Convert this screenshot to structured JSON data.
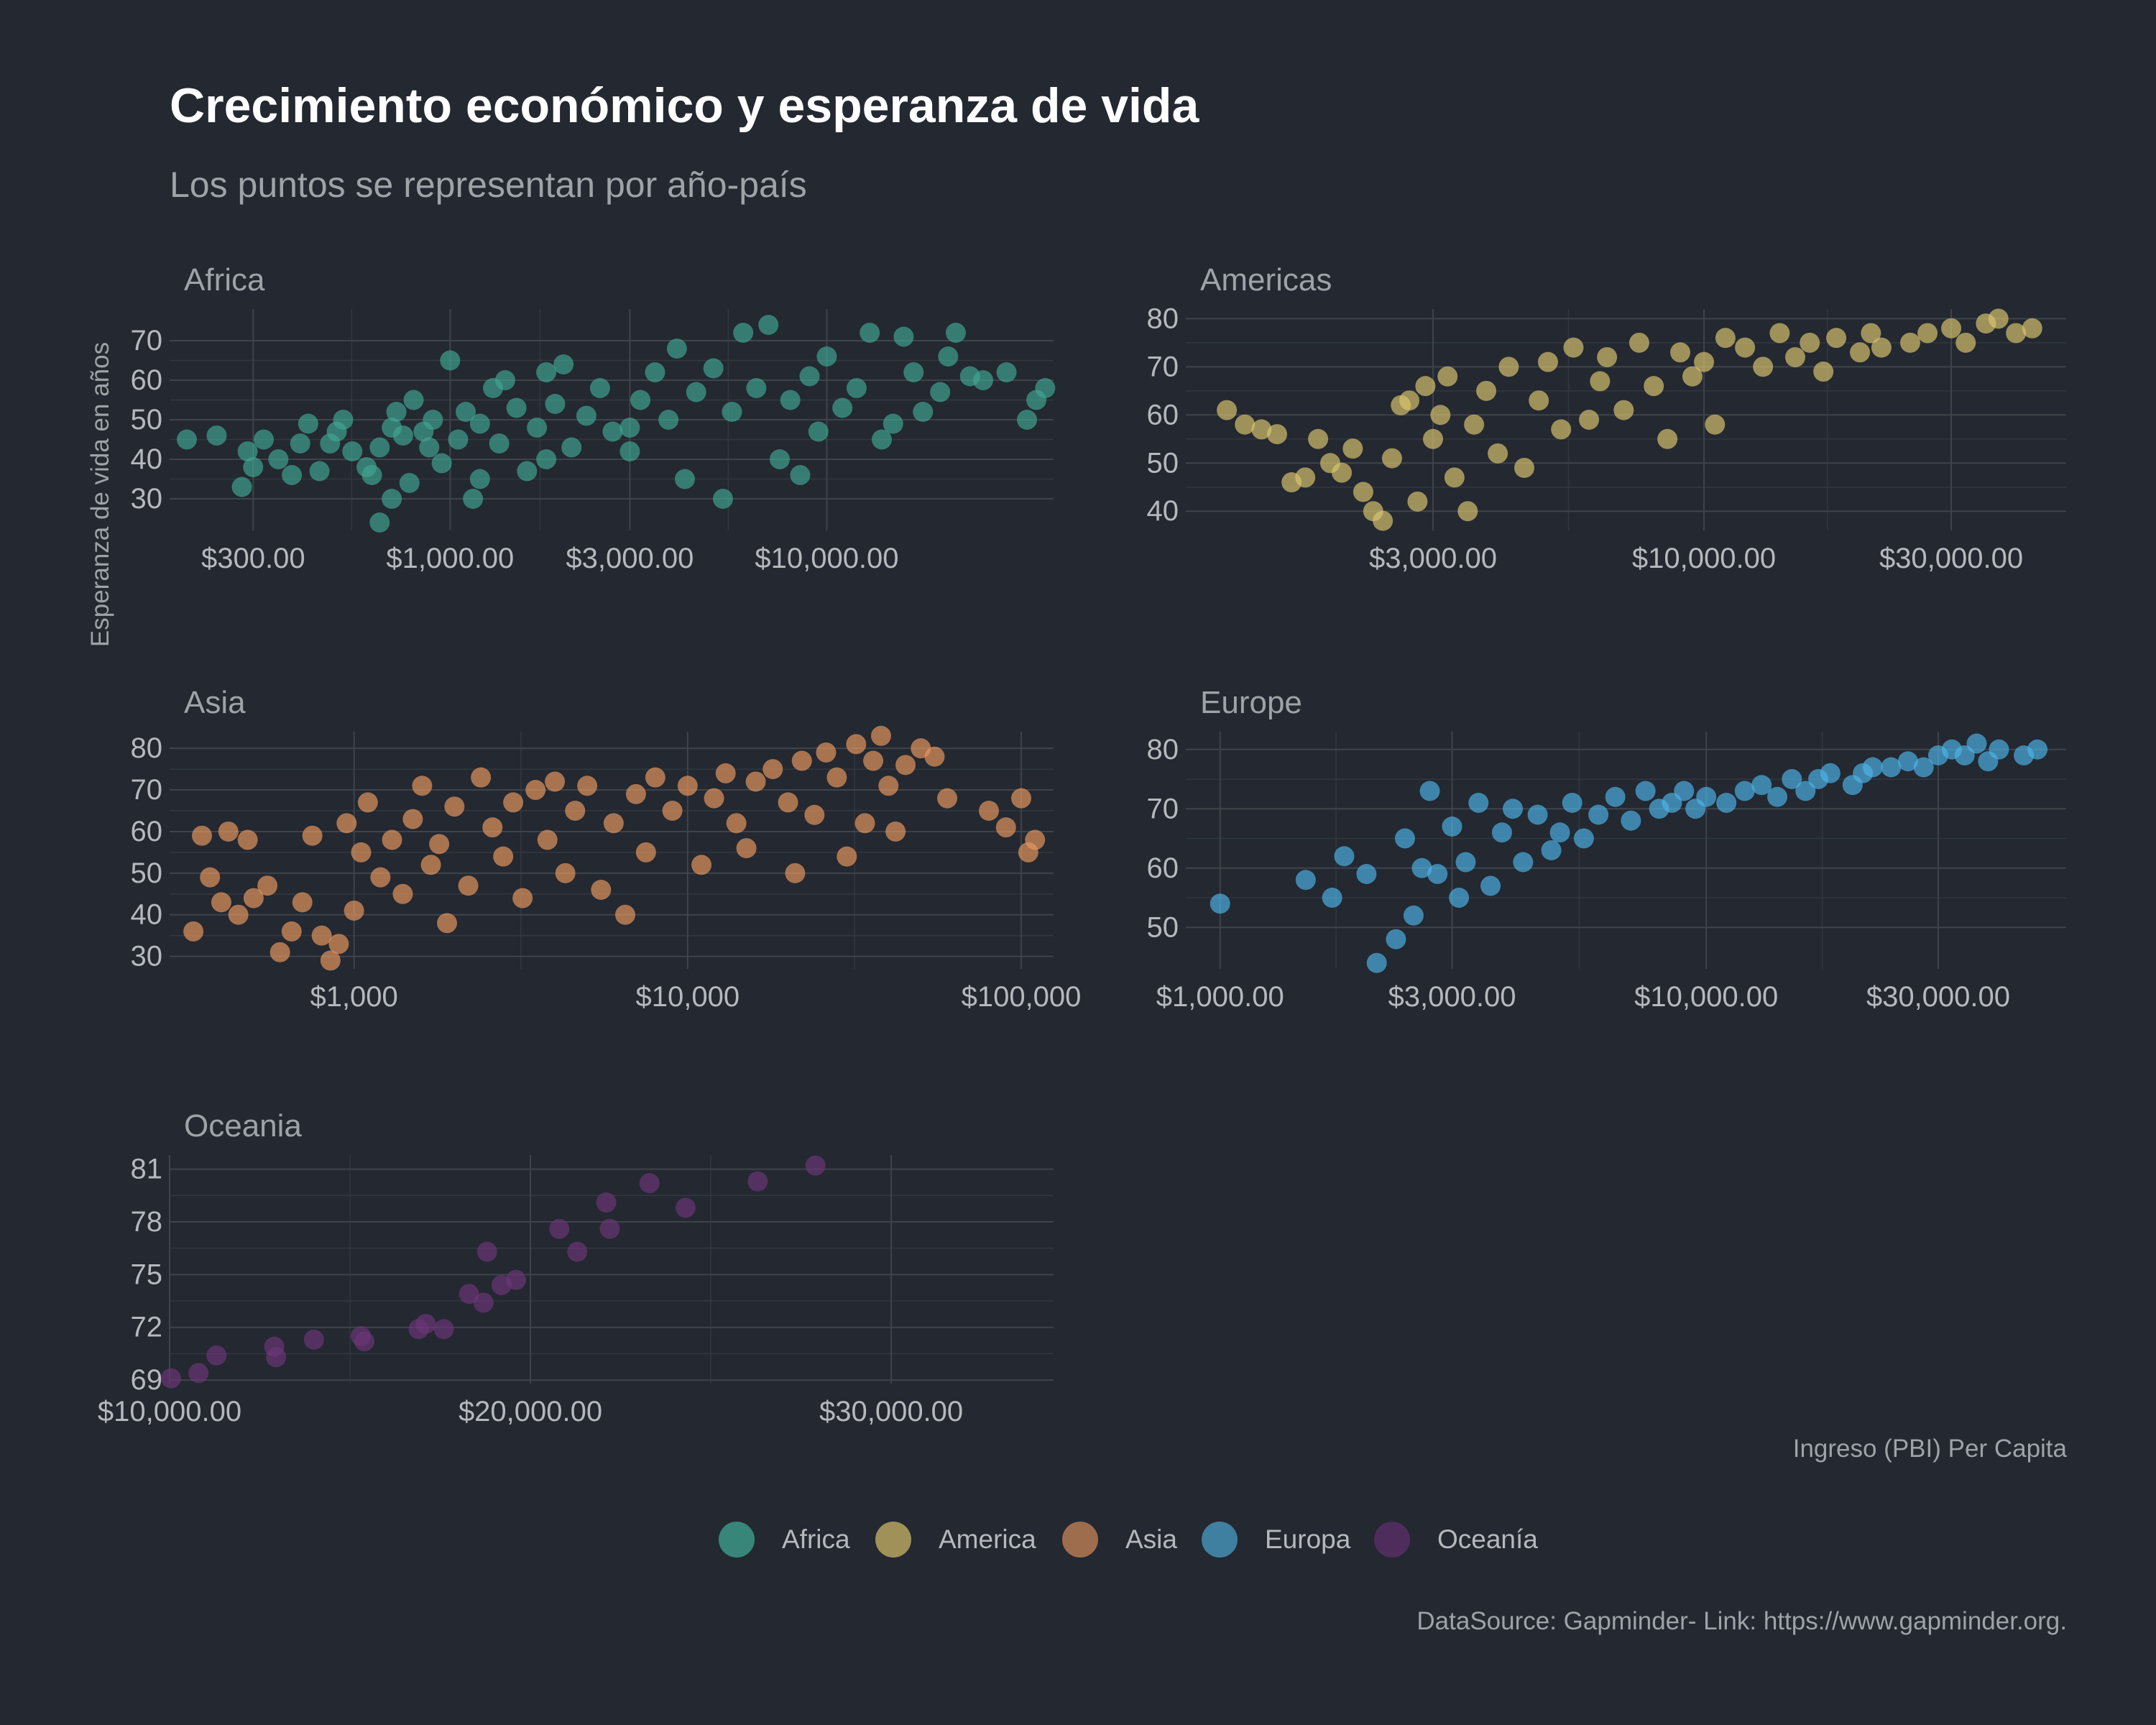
{
  "title": "Crecimiento económico y esperanza de vida",
  "subtitle": "Los puntos se representan por año-país",
  "y_axis_label": "Esperanza de vida en años",
  "x_axis_label": "Ingreso (PBI) Per Capita",
  "source": "DataSource: Gapminder- Link: https://www.gapminder.org.",
  "legend": [
    {
      "label": "Africa",
      "color": "#3fa592"
    },
    {
      "label": "America",
      "color": "#c9b466"
    },
    {
      "label": "Asia",
      "color": "#c88458"
    },
    {
      "label": "Europa",
      "color": "#4a9cc4"
    },
    {
      "label": "Oceanía",
      "color": "#5e2f6b"
    }
  ],
  "chart_data": [
    {
      "type": "scatter",
      "panel": "Africa",
      "color": "#3fa592",
      "x_scale": "log",
      "xlim": [
        180,
        40000
      ],
      "ylim": [
        22,
        78
      ],
      "x_ticks": [
        300,
        1000,
        3000,
        10000
      ],
      "x_tick_labels": [
        "$300.00",
        "$1,000.00",
        "$3,000.00",
        "$10,000.00"
      ],
      "y_ticks": [
        30,
        40,
        50,
        60,
        70
      ],
      "y_tick_labels": [
        "30",
        "40",
        "50",
        "60",
        "70"
      ],
      "points": [
        [
          200,
          45
        ],
        [
          240,
          46
        ],
        [
          280,
          33
        ],
        [
          290,
          42
        ],
        [
          300,
          38
        ],
        [
          320,
          45
        ],
        [
          350,
          40
        ],
        [
          380,
          36
        ],
        [
          400,
          44
        ],
        [
          420,
          49
        ],
        [
          450,
          37
        ],
        [
          480,
          44
        ],
        [
          500,
          47
        ],
        [
          520,
          50
        ],
        [
          550,
          42
        ],
        [
          600,
          38
        ],
        [
          620,
          36
        ],
        [
          650,
          43
        ],
        [
          700,
          48
        ],
        [
          720,
          52
        ],
        [
          750,
          46
        ],
        [
          780,
          34
        ],
        [
          800,
          55
        ],
        [
          850,
          47
        ],
        [
          880,
          43
        ],
        [
          900,
          50
        ],
        [
          950,
          39
        ],
        [
          1000,
          65
        ],
        [
          1050,
          45
        ],
        [
          1100,
          52
        ],
        [
          1150,
          30
        ],
        [
          1200,
          49
        ],
        [
          1300,
          58
        ],
        [
          1350,
          44
        ],
        [
          1400,
          60
        ],
        [
          1500,
          53
        ],
        [
          1600,
          37
        ],
        [
          1700,
          48
        ],
        [
          1800,
          62
        ],
        [
          1900,
          54
        ],
        [
          2000,
          64
        ],
        [
          2100,
          43
        ],
        [
          2300,
          51
        ],
        [
          2500,
          58
        ],
        [
          2700,
          47
        ],
        [
          3000,
          42
        ],
        [
          3200,
          55
        ],
        [
          3500,
          62
        ],
        [
          3800,
          50
        ],
        [
          4000,
          68
        ],
        [
          4200,
          35
        ],
        [
          4500,
          57
        ],
        [
          5000,
          63
        ],
        [
          5300,
          30
        ],
        [
          5600,
          52
        ],
        [
          6000,
          72
        ],
        [
          6500,
          58
        ],
        [
          7000,
          74
        ],
        [
          7500,
          40
        ],
        [
          8000,
          55
        ],
        [
          8500,
          36
        ],
        [
          9000,
          61
        ],
        [
          9500,
          47
        ],
        [
          10000,
          66
        ],
        [
          11000,
          53
        ],
        [
          12000,
          58
        ],
        [
          13000,
          72
        ],
        [
          14000,
          45
        ],
        [
          15000,
          49
        ],
        [
          16000,
          71
        ],
        [
          17000,
          62
        ],
        [
          18000,
          52
        ],
        [
          20000,
          57
        ],
        [
          21000,
          66
        ],
        [
          22000,
          72
        ],
        [
          24000,
          61
        ],
        [
          26000,
          60
        ],
        [
          30000,
          62
        ],
        [
          34000,
          50
        ],
        [
          36000,
          55
        ],
        [
          38000,
          58
        ],
        [
          650,
          24
        ],
        [
          700,
          30
        ],
        [
          1200,
          35
        ],
        [
          1800,
          40
        ],
        [
          3000,
          48
        ]
      ]
    },
    {
      "type": "scatter",
      "panel": "Americas",
      "color": "#d9c46f",
      "x_scale": "log",
      "xlim": [
        1000,
        50000
      ],
      "ylim": [
        36,
        82
      ],
      "x_ticks": [
        3000,
        10000,
        30000
      ],
      "x_tick_labels": [
        "$3,000.00",
        "$10,000.00",
        "$30,000.00"
      ],
      "y_ticks": [
        40,
        50,
        60,
        70,
        80
      ],
      "y_tick_labels": [
        "40",
        "50",
        "60",
        "70",
        "80"
      ],
      "points": [
        [
          1200,
          61
        ],
        [
          1300,
          58
        ],
        [
          1400,
          57
        ],
        [
          1500,
          56
        ],
        [
          1600,
          46
        ],
        [
          1700,
          47
        ],
        [
          1800,
          55
        ],
        [
          1900,
          50
        ],
        [
          2000,
          48
        ],
        [
          2100,
          53
        ],
        [
          2200,
          44
        ],
        [
          2300,
          40
        ],
        [
          2400,
          38
        ],
        [
          2500,
          51
        ],
        [
          2600,
          62
        ],
        [
          2700,
          63
        ],
        [
          2800,
          42
        ],
        [
          2900,
          66
        ],
        [
          3000,
          55
        ],
        [
          3100,
          60
        ],
        [
          3200,
          68
        ],
        [
          3300,
          47
        ],
        [
          3500,
          40
        ],
        [
          3600,
          58
        ],
        [
          3800,
          65
        ],
        [
          4000,
          52
        ],
        [
          4200,
          70
        ],
        [
          4500,
          49
        ],
        [
          4800,
          63
        ],
        [
          5000,
          71
        ],
        [
          5300,
          57
        ],
        [
          5600,
          74
        ],
        [
          6000,
          59
        ],
        [
          6300,
          67
        ],
        [
          6500,
          72
        ],
        [
          7000,
          61
        ],
        [
          7500,
          75
        ],
        [
          8000,
          66
        ],
        [
          8500,
          55
        ],
        [
          9000,
          73
        ],
        [
          9500,
          68
        ],
        [
          10000,
          71
        ],
        [
          10500,
          58
        ],
        [
          11000,
          76
        ],
        [
          12000,
          74
        ],
        [
          13000,
          70
        ],
        [
          14000,
          77
        ],
        [
          15000,
          72
        ],
        [
          16000,
          75
        ],
        [
          17000,
          69
        ],
        [
          18000,
          76
        ],
        [
          20000,
          73
        ],
        [
          21000,
          77
        ],
        [
          22000,
          74
        ],
        [
          25000,
          75
        ],
        [
          27000,
          77
        ],
        [
          30000,
          78
        ],
        [
          32000,
          75
        ],
        [
          35000,
          79
        ],
        [
          37000,
          80
        ],
        [
          40000,
          77
        ],
        [
          43000,
          78
        ]
      ]
    },
    {
      "type": "scatter",
      "panel": "Asia",
      "color": "#e8985f",
      "x_scale": "log",
      "xlim": [
        280,
        125000
      ],
      "ylim": [
        27,
        84
      ],
      "x_ticks": [
        1000,
        10000,
        100000
      ],
      "x_tick_labels": [
        "$1,000",
        "$10,000",
        "$100,000"
      ],
      "y_ticks": [
        30,
        40,
        50,
        60,
        70,
        80
      ],
      "y_tick_labels": [
        "30",
        "40",
        "50",
        "60",
        "70",
        "80"
      ],
      "points": [
        [
          330,
          36
        ],
        [
          350,
          59
        ],
        [
          370,
          49
        ],
        [
          400,
          43
        ],
        [
          420,
          60
        ],
        [
          450,
          40
        ],
        [
          480,
          58
        ],
        [
          500,
          44
        ],
        [
          550,
          47
        ],
        [
          600,
          31
        ],
        [
          650,
          36
        ],
        [
          700,
          43
        ],
        [
          750,
          59
        ],
        [
          800,
          35
        ],
        [
          850,
          29
        ],
        [
          900,
          33
        ],
        [
          950,
          62
        ],
        [
          1000,
          41
        ],
        [
          1050,
          55
        ],
        [
          1100,
          67
        ],
        [
          1200,
          49
        ],
        [
          1300,
          58
        ],
        [
          1400,
          45
        ],
        [
          1500,
          63
        ],
        [
          1600,
          71
        ],
        [
          1700,
          52
        ],
        [
          1800,
          57
        ],
        [
          1900,
          38
        ],
        [
          2000,
          66
        ],
        [
          2200,
          47
        ],
        [
          2400,
          73
        ],
        [
          2600,
          61
        ],
        [
          2800,
          54
        ],
        [
          3000,
          67
        ],
        [
          3200,
          44
        ],
        [
          3500,
          70
        ],
        [
          3800,
          58
        ],
        [
          4000,
          72
        ],
        [
          4300,
          50
        ],
        [
          4600,
          65
        ],
        [
          5000,
          71
        ],
        [
          5500,
          46
        ],
        [
          6000,
          62
        ],
        [
          6500,
          40
        ],
        [
          7000,
          69
        ],
        [
          7500,
          55
        ],
        [
          8000,
          73
        ],
        [
          9000,
          65
        ],
        [
          10000,
          71
        ],
        [
          11000,
          52
        ],
        [
          12000,
          68
        ],
        [
          13000,
          74
        ],
        [
          14000,
          62
        ],
        [
          15000,
          56
        ],
        [
          16000,
          72
        ],
        [
          18000,
          75
        ],
        [
          20000,
          67
        ],
        [
          21000,
          50
        ],
        [
          22000,
          77
        ],
        [
          24000,
          64
        ],
        [
          26000,
          79
        ],
        [
          28000,
          73
        ],
        [
          30000,
          54
        ],
        [
          32000,
          81
        ],
        [
          34000,
          62
        ],
        [
          36000,
          77
        ],
        [
          38000,
          83
        ],
        [
          40000,
          71
        ],
        [
          42000,
          60
        ],
        [
          45000,
          76
        ],
        [
          50000,
          80
        ],
        [
          55000,
          78
        ],
        [
          60000,
          68
        ],
        [
          80000,
          65
        ],
        [
          90000,
          61
        ],
        [
          100000,
          68
        ],
        [
          105000,
          55
        ],
        [
          110000,
          58
        ]
      ]
    },
    {
      "type": "scatter",
      "panel": "Europe",
      "color": "#4cb3e6",
      "x_scale": "log",
      "xlim": [
        850,
        55000
      ],
      "ylim": [
        43,
        83
      ],
      "x_ticks": [
        1000,
        3000,
        10000,
        30000
      ],
      "x_tick_labels": [
        "$1,000.00",
        "$3,000.00",
        "$10,000.00",
        "$30,000.00"
      ],
      "y_ticks": [
        50,
        60,
        70,
        80
      ],
      "y_tick_labels": [
        "50",
        "60",
        "70",
        "80"
      ],
      "points": [
        [
          1000,
          54
        ],
        [
          1500,
          58
        ],
        [
          1700,
          55
        ],
        [
          1800,
          62
        ],
        [
          2000,
          59
        ],
        [
          2100,
          44
        ],
        [
          2300,
          48
        ],
        [
          2400,
          65
        ],
        [
          2500,
          52
        ],
        [
          2600,
          60
        ],
        [
          2700,
          73
        ],
        [
          2800,
          59
        ],
        [
          3000,
          67
        ],
        [
          3100,
          55
        ],
        [
          3200,
          61
        ],
        [
          3400,
          71
        ],
        [
          3600,
          57
        ],
        [
          3800,
          66
        ],
        [
          4000,
          70
        ],
        [
          4200,
          61
        ],
        [
          4500,
          69
        ],
        [
          4800,
          63
        ],
        [
          5000,
          66
        ],
        [
          5300,
          71
        ],
        [
          5600,
          65
        ],
        [
          6000,
          69
        ],
        [
          6500,
          72
        ],
        [
          7000,
          68
        ],
        [
          7500,
          73
        ],
        [
          8000,
          70
        ],
        [
          8500,
          71
        ],
        [
          9000,
          73
        ],
        [
          9500,
          70
        ],
        [
          10000,
          72
        ],
        [
          11000,
          71
        ],
        [
          12000,
          73
        ],
        [
          13000,
          74
        ],
        [
          14000,
          72
        ],
        [
          15000,
          75
        ],
        [
          16000,
          73
        ],
        [
          17000,
          75
        ],
        [
          18000,
          76
        ],
        [
          20000,
          74
        ],
        [
          21000,
          76
        ],
        [
          22000,
          77
        ],
        [
          24000,
          77
        ],
        [
          26000,
          78
        ],
        [
          28000,
          77
        ],
        [
          30000,
          79
        ],
        [
          32000,
          80
        ],
        [
          34000,
          79
        ],
        [
          36000,
          81
        ],
        [
          38000,
          78
        ],
        [
          40000,
          80
        ],
        [
          45000,
          79
        ],
        [
          48000,
          80
        ]
      ]
    },
    {
      "type": "scatter",
      "panel": "Oceania",
      "color": "#6b3677",
      "x_scale": "linear",
      "xlim": [
        10000,
        34500
      ],
      "ylim": [
        68.8,
        81.8
      ],
      "x_ticks": [
        10000,
        20000,
        30000
      ],
      "x_tick_labels": [
        "$10,000.00",
        "$20,000.00",
        "$30,000.00"
      ],
      "y_ticks": [
        69,
        72,
        75,
        78,
        81
      ],
      "y_tick_labels": [
        "69",
        "72",
        "75",
        "78",
        "81"
      ],
      "points": [
        [
          10040,
          69.1
        ],
        [
          10800,
          69.4
        ],
        [
          11300,
          70.4
        ],
        [
          12900,
          70.9
        ],
        [
          12950,
          70.3
        ],
        [
          14000,
          71.3
        ],
        [
          15300,
          71.5
        ],
        [
          15400,
          71.2
        ],
        [
          16900,
          71.9
        ],
        [
          17100,
          72.2
        ],
        [
          17600,
          71.9
        ],
        [
          18300,
          73.9
        ],
        [
          18700,
          73.4
        ],
        [
          18800,
          76.3
        ],
        [
          19200,
          74.4
        ],
        [
          19600,
          74.7
        ],
        [
          20800,
          77.6
        ],
        [
          21300,
          76.3
        ],
        [
          22100,
          79.1
        ],
        [
          22200,
          77.6
        ],
        [
          23300,
          80.2
        ],
        [
          24300,
          78.8
        ],
        [
          26300,
          80.3
        ],
        [
          27900,
          81.2
        ]
      ]
    }
  ]
}
